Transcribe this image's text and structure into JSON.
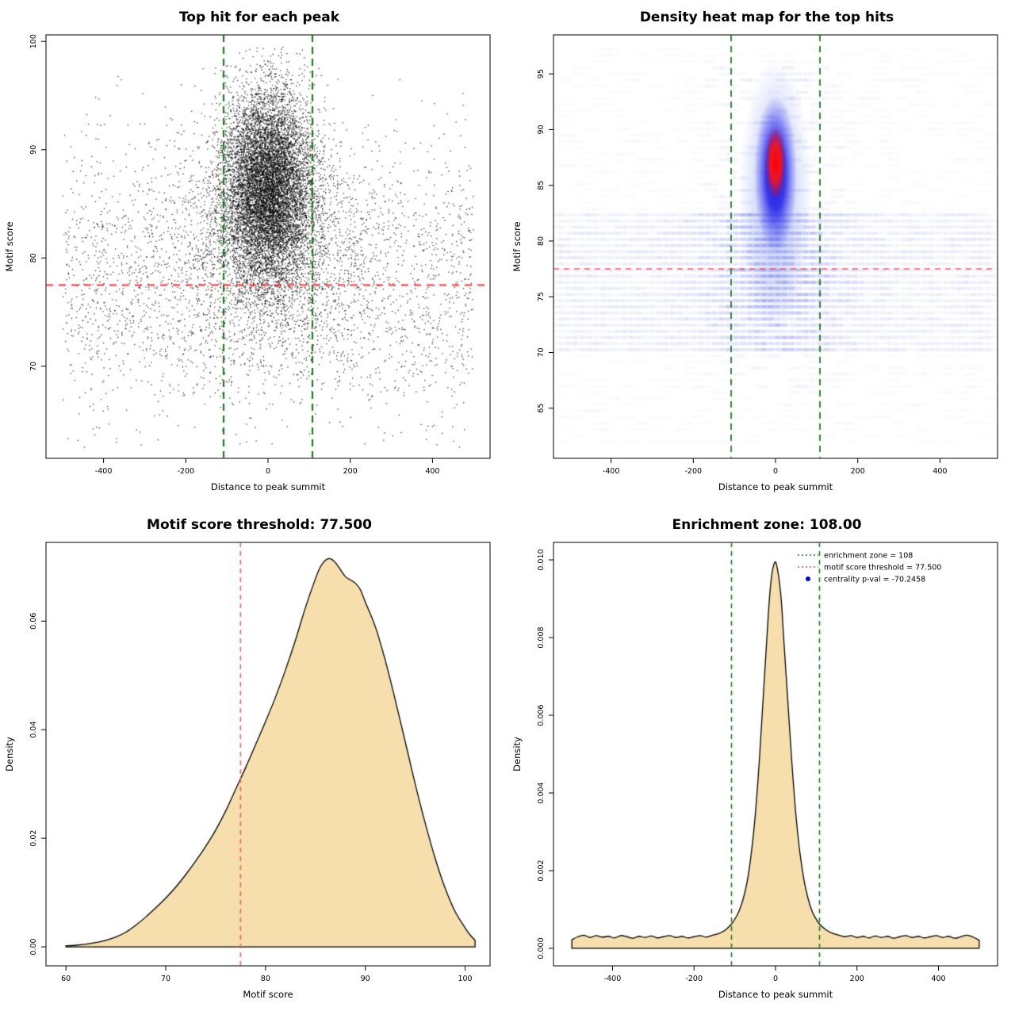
{
  "figure": {
    "background": "#ffffff",
    "text_color": "#000000"
  },
  "chart_data": [
    {
      "type": "scatter",
      "title": "Top hit for each peak",
      "xlabel": "Distance to peak summit",
      "ylabel": "Motif score",
      "xlim": [
        -540,
        540
      ],
      "ylim": [
        61.5,
        100.6
      ],
      "xticks": [
        -400,
        -200,
        0,
        200,
        400
      ],
      "xtick_labels": [
        "-400",
        "-200",
        "0",
        "200",
        "400"
      ],
      "yticks": [
        70,
        80,
        90,
        100
      ],
      "ytick_labels": [
        "70",
        "80",
        "90",
        "100"
      ],
      "point_color": "#000000",
      "lines": [
        {
          "orient": "v",
          "pos": -108,
          "color": "#1e7a1e",
          "dash": [
            9,
            6
          ],
          "width": 2.2
        },
        {
          "orient": "v",
          "pos": 108,
          "color": "#1e7a1e",
          "dash": [
            9,
            6
          ],
          "width": 2.2
        },
        {
          "orient": "h",
          "pos": 77.5,
          "color": "#ff3333",
          "dash": [
            9,
            7
          ],
          "width": 1.8
        }
      ],
      "generator": {
        "seed": 42,
        "groups": [
          {
            "n": 2600,
            "x": {
              "dist": "uniform",
              "min": -500,
              "max": 500
            },
            "y": {
              "dist": "normal",
              "mean": 78,
              "sd": 6.5,
              "min": 62.5,
              "max": 97.5
            }
          },
          {
            "n": 9500,
            "x": {
              "dist": "normal",
              "mean": 0,
              "sd": 55,
              "min": -500,
              "max": 500
            },
            "y": {
              "dist": "normal",
              "mean": 86.5,
              "sd": 4.5,
              "min": 68,
              "max": 99.5
            }
          },
          {
            "n": 2000,
            "x": {
              "dist": "normal",
              "mean": 0,
              "sd": 140,
              "min": -500,
              "max": 500
            },
            "y": {
              "dist": "normal",
              "mean": 80.5,
              "sd": 5.5,
              "min": 64,
              "max": 97
            }
          }
        ]
      }
    },
    {
      "type": "heatmap",
      "title": "Density heat map for the top hits",
      "xlabel": "Distance to peak summit",
      "ylabel": "Motif score",
      "xlim": [
        -540,
        540
      ],
      "ylim": [
        60.5,
        98.5
      ],
      "xticks": [
        -400,
        -200,
        0,
        200,
        400
      ],
      "xtick_labels": [
        "-400",
        "-200",
        "0",
        "200",
        "400"
      ],
      "yticks": [
        65,
        70,
        75,
        80,
        85,
        90,
        95
      ],
      "ytick_labels": [
        "65",
        "70",
        "75",
        "80",
        "85",
        "90",
        "95"
      ],
      "seed": 7,
      "hotspot": {
        "x": 0,
        "y_halo": 84,
        "y_blob": 86,
        "y_core": 87,
        "halo_color": "#5a6ee6",
        "blob_color": "#1414e6",
        "core_color": "#ff0000"
      },
      "lines": [
        {
          "orient": "v",
          "pos": -108,
          "color": "#1e7a1e",
          "dash": [
            8,
            6
          ],
          "width": 1.8
        },
        {
          "orient": "v",
          "pos": 108,
          "color": "#1e7a1e",
          "dash": [
            8,
            6
          ],
          "width": 1.8
        },
        {
          "orient": "h",
          "pos": 77.5,
          "color": "#ff3333",
          "dash": [
            7,
            6
          ],
          "width": 1.3
        }
      ]
    },
    {
      "type": "area",
      "title": "Motif score threshold: 77.500",
      "xlabel": "Motif score",
      "ylabel": "Density",
      "xlim": [
        58,
        102.5
      ],
      "ylim": [
        -0.0035,
        0.0745
      ],
      "xticks": [
        60,
        70,
        80,
        90,
        100
      ],
      "xtick_labels": [
        "60",
        "70",
        "80",
        "90",
        "100"
      ],
      "yticks": [
        0,
        0.02,
        0.04,
        0.06
      ],
      "ytick_labels": [
        "0.00",
        "0.02",
        "0.04",
        "0.06"
      ],
      "fill": "#f7dfad",
      "stroke": "#000000",
      "lines": [
        {
          "orient": "v",
          "pos": 77.5,
          "color": "#e06666",
          "dash": [
            6,
            5
          ],
          "width": 1.6
        }
      ],
      "points": [
        [
          60,
          0.0002
        ],
        [
          61,
          0.0003
        ],
        [
          62,
          0.0005
        ],
        [
          63,
          0.0008
        ],
        [
          64,
          0.0012
        ],
        [
          65,
          0.0018
        ],
        [
          66,
          0.0027
        ],
        [
          67,
          0.004
        ],
        [
          68,
          0.0055
        ],
        [
          69,
          0.0072
        ],
        [
          70,
          0.009
        ],
        [
          71,
          0.011
        ],
        [
          72,
          0.0133
        ],
        [
          73,
          0.0158
        ],
        [
          74,
          0.0185
        ],
        [
          75,
          0.0215
        ],
        [
          76,
          0.025
        ],
        [
          77,
          0.029
        ],
        [
          78,
          0.033
        ],
        [
          79,
          0.0372
        ],
        [
          80,
          0.0415
        ],
        [
          81,
          0.046
        ],
        [
          82,
          0.051
        ],
        [
          83,
          0.0565
        ],
        [
          84,
          0.0625
        ],
        [
          85,
          0.0678
        ],
        [
          85.5,
          0.07
        ],
        [
          86,
          0.0712
        ],
        [
          86.5,
          0.0715
        ],
        [
          87,
          0.0708
        ],
        [
          87.5,
          0.0695
        ],
        [
          88,
          0.0682
        ],
        [
          88.5,
          0.0676
        ],
        [
          89,
          0.067
        ],
        [
          89.5,
          0.0658
        ],
        [
          90,
          0.0635
        ],
        [
          91,
          0.059
        ],
        [
          92,
          0.0528
        ],
        [
          93,
          0.0455
        ],
        [
          94,
          0.0378
        ],
        [
          95,
          0.03
        ],
        [
          96,
          0.0228
        ],
        [
          97,
          0.0163
        ],
        [
          98,
          0.0108
        ],
        [
          99,
          0.0065
        ],
        [
          100,
          0.0035
        ],
        [
          100.5,
          0.0022
        ],
        [
          101,
          0.0012
        ]
      ]
    },
    {
      "type": "area",
      "title": "Enrichment zone: 108.00",
      "xlabel": "Distance to peak summit",
      "ylabel": "Density",
      "xlim": [
        -545,
        545
      ],
      "ylim": [
        -0.00045,
        0.01045
      ],
      "xticks": [
        -400,
        -200,
        0,
        200,
        400
      ],
      "xtick_labels": [
        "-400",
        "-200",
        "0",
        "200",
        "400"
      ],
      "yticks": [
        0,
        0.002,
        0.004,
        0.006,
        0.008,
        0.01
      ],
      "ytick_labels": [
        "0.000",
        "0.002",
        "0.004",
        "0.006",
        "0.008",
        "0.010"
      ],
      "fill": "#f7dfad",
      "stroke": "#000000",
      "lines": [
        {
          "orient": "v",
          "pos": -108,
          "color": "#1e7a1e",
          "dash": [
            6,
            5
          ],
          "width": 1.6
        },
        {
          "orient": "v",
          "pos": 108,
          "color": "#1e7a1e",
          "dash": [
            6,
            5
          ],
          "width": 1.6
        }
      ],
      "legend": {
        "items": [
          {
            "sample": "dotted-line",
            "color": "#1e7a1e",
            "label": "enrichment zone = 108"
          },
          {
            "sample": "dotted-line",
            "color": "#e05555",
            "label": "motif score threshold = 77.500"
          },
          {
            "sample": "point",
            "color": "#0000cc",
            "label": "centrality p-val = -70.2458"
          }
        ]
      },
      "points": [
        [
          -500,
          0.00022
        ],
        [
          -485,
          0.0003
        ],
        [
          -470,
          0.00034
        ],
        [
          -455,
          0.00028
        ],
        [
          -440,
          0.00033
        ],
        [
          -425,
          0.00029
        ],
        [
          -410,
          0.00031
        ],
        [
          -395,
          0.00027
        ],
        [
          -380,
          0.00033
        ],
        [
          -365,
          0.0003
        ],
        [
          -350,
          0.00026
        ],
        [
          -335,
          0.00031
        ],
        [
          -320,
          0.00028
        ],
        [
          -305,
          0.00032
        ],
        [
          -290,
          0.00027
        ],
        [
          -275,
          0.0003
        ],
        [
          -260,
          0.00033
        ],
        [
          -245,
          0.00028
        ],
        [
          -230,
          0.00031
        ],
        [
          -215,
          0.00027
        ],
        [
          -200,
          0.0003
        ],
        [
          -185,
          0.00033
        ],
        [
          -170,
          0.00029
        ],
        [
          -155,
          0.00034
        ],
        [
          -140,
          0.00038
        ],
        [
          -125,
          0.00046
        ],
        [
          -110,
          0.0006
        ],
        [
          -100,
          0.00075
        ],
        [
          -90,
          0.00095
        ],
        [
          -80,
          0.00125
        ],
        [
          -70,
          0.0017
        ],
        [
          -60,
          0.0024
        ],
        [
          -50,
          0.0034
        ],
        [
          -40,
          0.0048
        ],
        [
          -30,
          0.0065
        ],
        [
          -20,
          0.0082
        ],
        [
          -15,
          0.009
        ],
        [
          -10,
          0.00955
        ],
        [
          -5,
          0.00985
        ],
        [
          0,
          0.00995
        ],
        [
          5,
          0.00975
        ],
        [
          10,
          0.0094
        ],
        [
          15,
          0.00885
        ],
        [
          20,
          0.008
        ],
        [
          30,
          0.0064
        ],
        [
          40,
          0.0048
        ],
        [
          50,
          0.00345
        ],
        [
          60,
          0.00245
        ],
        [
          70,
          0.00175
        ],
        [
          80,
          0.00128
        ],
        [
          90,
          0.00095
        ],
        [
          100,
          0.00075
        ],
        [
          110,
          0.0006
        ],
        [
          125,
          0.00047
        ],
        [
          140,
          0.00039
        ],
        [
          155,
          0.00034
        ],
        [
          170,
          0.0003
        ],
        [
          185,
          0.00033
        ],
        [
          200,
          0.00028
        ],
        [
          215,
          0.00031
        ],
        [
          230,
          0.00027
        ],
        [
          245,
          0.00032
        ],
        [
          260,
          0.00028
        ],
        [
          275,
          0.00031
        ],
        [
          290,
          0.00026
        ],
        [
          305,
          0.0003
        ],
        [
          320,
          0.00033
        ],
        [
          335,
          0.00028
        ],
        [
          350,
          0.00031
        ],
        [
          365,
          0.00027
        ],
        [
          380,
          0.0003
        ],
        [
          395,
          0.00033
        ],
        [
          410,
          0.00028
        ],
        [
          425,
          0.00031
        ],
        [
          440,
          0.00026
        ],
        [
          455,
          0.0003
        ],
        [
          470,
          0.00034
        ],
        [
          485,
          0.00029
        ],
        [
          500,
          0.00021
        ]
      ]
    }
  ]
}
